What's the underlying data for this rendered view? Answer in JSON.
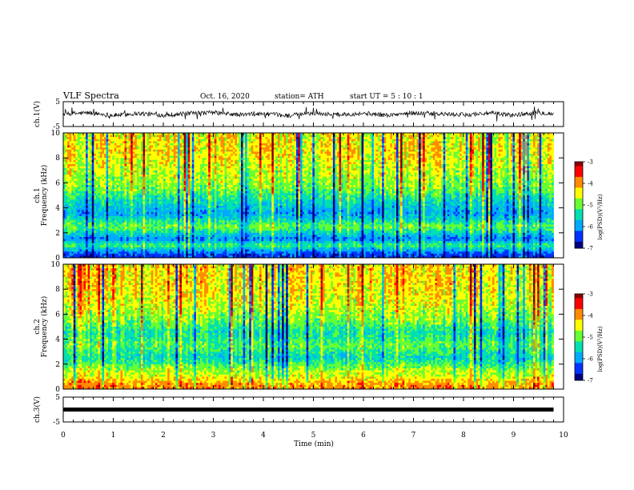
{
  "header": {
    "title": "VLF Spectra",
    "date": "Oct. 16, 2020",
    "station": "station= ATH",
    "start": "start  UT =   5  : 10 : 1"
  },
  "colorbar": {
    "label": "log(PSD)(V²/Hz)",
    "ticks": [
      "-3",
      "-4",
      "-5",
      "-6",
      "-7"
    ],
    "colors": [
      "#8b0000",
      "#ff0000",
      "#ff8c00",
      "#ffff00",
      "#66ff33",
      "#00e0b0",
      "#00aaff",
      "#0033ff",
      "#000080"
    ]
  },
  "chart_data": [
    {
      "type": "line",
      "panel": "ch.1",
      "ylabel": "ch.1(V)",
      "y_ticks": [
        "5",
        "-5"
      ],
      "ylim": [
        -5,
        5
      ],
      "xlim": [
        0,
        10
      ],
      "x": [
        0,
        0.5,
        1,
        1.5,
        2,
        2.5,
        3,
        3.5,
        4,
        4.5,
        5,
        5.5,
        6,
        6.5,
        7,
        7.5,
        8,
        8.5,
        9,
        9.5,
        9.8
      ],
      "y": [
        0,
        0.5,
        -0.5,
        0.3,
        -0.4,
        0.2,
        0.6,
        -0.3,
        0.1,
        -0.6,
        0.4,
        -0.2,
        0.3,
        -0.5,
        0.5,
        0,
        -0.3,
        0.4,
        -0.4,
        0.7,
        0
      ]
    },
    {
      "type": "heatmap",
      "panel": "ch.1",
      "ylabel": "ch.1 Frequency  (kHz)",
      "y_ticks": [
        "0",
        "2",
        "4",
        "6",
        "8",
        "10"
      ],
      "ylim": [
        0,
        10
      ],
      "xlim": [
        0,
        9.8
      ],
      "z_label": "log(PSD)(V²/Hz)",
      "zlim": [
        -7,
        -3
      ],
      "freq_kHz": [
        0.3,
        1.0,
        1.5,
        2.5,
        3.5,
        4.5,
        5.5,
        6.5,
        7.5,
        8.5,
        9.5
      ],
      "mean_logPSD": [
        -6.5,
        -5.2,
        -6.2,
        -5.0,
        -6.0,
        -5.6,
        -5.0,
        -4.8,
        -4.6,
        -4.4,
        -4.5
      ]
    },
    {
      "type": "heatmap",
      "panel": "ch.2",
      "ylabel": "ch.2 Frequency  (kHz)",
      "y_ticks": [
        "0",
        "2",
        "4",
        "6",
        "8",
        "10"
      ],
      "ylim": [
        0,
        10
      ],
      "xlim": [
        0,
        9.8
      ],
      "z_label": "log(PSD)(V²/Hz)",
      "zlim": [
        -7,
        -3
      ],
      "freq_kHz": [
        0.3,
        1.0,
        1.5,
        2.5,
        3.5,
        4.5,
        5.5,
        6.5,
        7.5,
        8.5,
        9.5
      ],
      "mean_logPSD": [
        -4.0,
        -4.6,
        -4.8,
        -5.6,
        -5.1,
        -5.5,
        -5.0,
        -4.7,
        -4.5,
        -4.4,
        -4.4
      ]
    },
    {
      "type": "line",
      "panel": "ch.3",
      "ylabel": "ch.3(V)",
      "y_ticks": [
        "5",
        "-5"
      ],
      "ylim": [
        -5,
        5
      ],
      "xlim": [
        0,
        10
      ],
      "x": [
        0,
        9.8
      ],
      "y": [
        0,
        0
      ]
    }
  ],
  "xaxis": {
    "label": "Time  (min)",
    "ticks": [
      "0",
      "1",
      "2",
      "3",
      "4",
      "5",
      "6",
      "7",
      "8",
      "9",
      "10"
    ],
    "range": [
      0,
      10
    ]
  }
}
